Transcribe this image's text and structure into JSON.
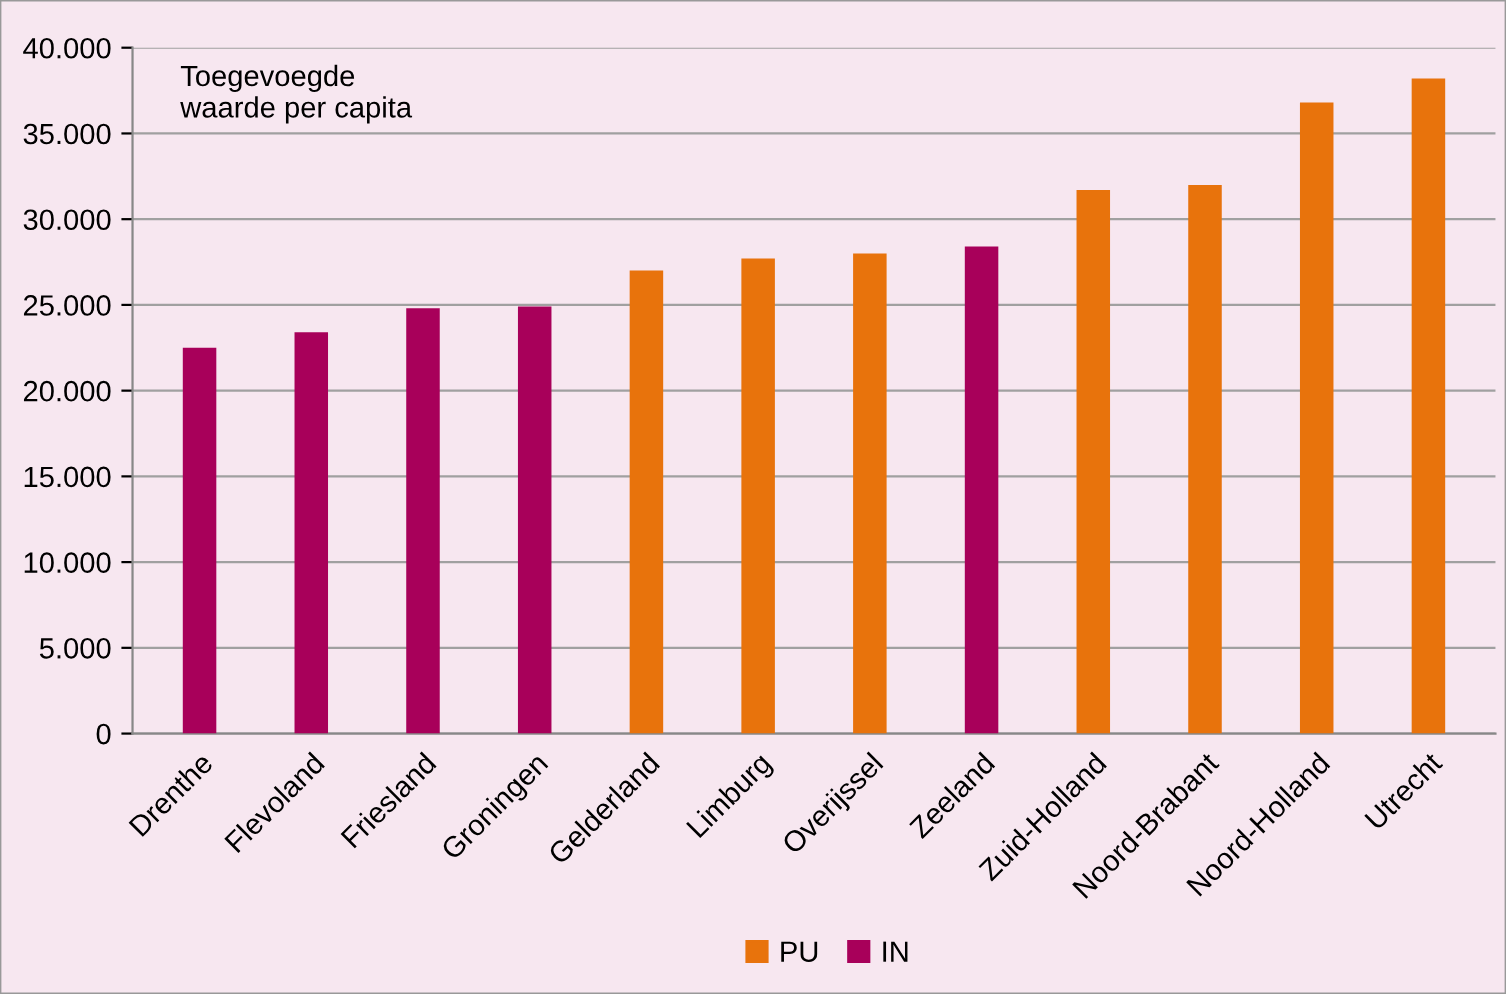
{
  "chart_data": {
    "type": "bar",
    "title": "Toegevoegde\nwaarde per capita",
    "categories": [
      "Drenthe",
      "Flevoland",
      "Friesland",
      "Groningen",
      "Gelderland",
      "Limburg",
      "Overijssel",
      "Zeeland",
      "Zuid-Holland",
      "Noord-Brabant",
      "Noord-Holland",
      "Utrecht"
    ],
    "series": [
      {
        "name": "PU",
        "color": "#e8730c",
        "values": [
          null,
          null,
          null,
          null,
          27000,
          27700,
          28000,
          null,
          31700,
          32000,
          36800,
          38200
        ]
      },
      {
        "name": "IN",
        "color": "#a8005a",
        "values": [
          22500,
          23400,
          24800,
          24900,
          null,
          null,
          null,
          28400,
          null,
          null,
          null,
          null
        ]
      }
    ],
    "ylim": [
      0,
      40000
    ],
    "yticks": [
      {
        "value": 0,
        "label": "0"
      },
      {
        "value": 5000,
        "label": "5.000"
      },
      {
        "value": 10000,
        "label": "10.000"
      },
      {
        "value": 15000,
        "label": "15.000"
      },
      {
        "value": 20000,
        "label": "20.000"
      },
      {
        "value": 25000,
        "label": "25.000"
      },
      {
        "value": 30000,
        "label": "30.000"
      },
      {
        "value": 35000,
        "label": "35.000"
      },
      {
        "value": 40000,
        "label": "40.000"
      }
    ],
    "grid": "y",
    "legend": "bottom"
  }
}
